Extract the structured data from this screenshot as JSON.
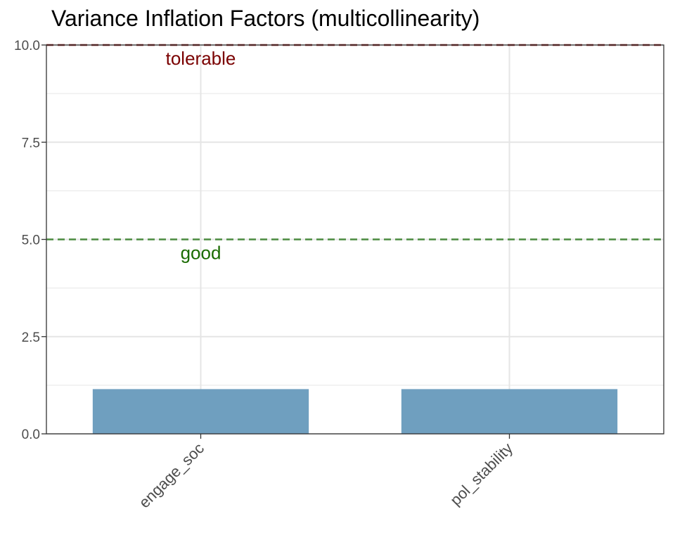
{
  "chart_data": {
    "type": "bar",
    "title": "Variance Inflation Factors (multicollinearity)",
    "xlabel": "",
    "ylabel": "",
    "categories": [
      "engage_soc",
      "pol_stability"
    ],
    "values": [
      1.15,
      1.15
    ],
    "ylim": [
      0,
      10
    ],
    "yticks": [
      0,
      2.5,
      5,
      7.5,
      10
    ],
    "ytick_labels": [
      "0.0",
      "2.5",
      "5.0",
      "7.5",
      "10.0"
    ],
    "grid": true,
    "bar_color": "#6f9fbf",
    "reference_lines": [
      {
        "y": 5,
        "label": "good",
        "color": "#4a8a3f",
        "label_color": "#1a6b00"
      },
      {
        "y": 10,
        "label": "tolerable",
        "color": "#7a1010",
        "label_color": "#7a0000"
      }
    ]
  }
}
